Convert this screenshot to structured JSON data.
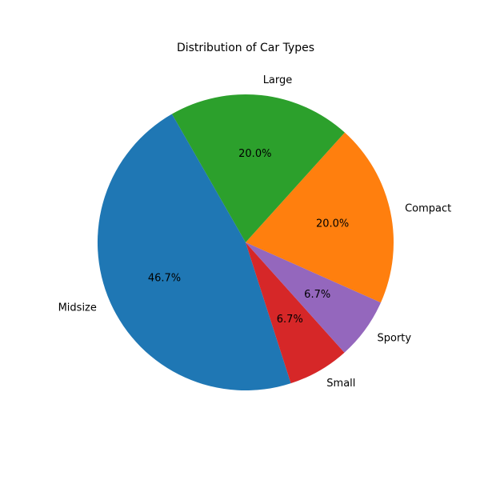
{
  "chart_data": {
    "type": "pie",
    "title": "Distribution of Car Types",
    "categories": [
      "Compact",
      "Large",
      "Midsize",
      "Small",
      "Sporty"
    ],
    "values": [
      20.0,
      20.0,
      46.7,
      6.7,
      6.7
    ],
    "value_labels": [
      "20.0%",
      "20.0%",
      "46.7%",
      "6.7%",
      "6.7%"
    ],
    "colors": [
      "#ff7f0e",
      "#2ca02c",
      "#1f77b4",
      "#d62728",
      "#9467bd"
    ],
    "start_angle_deg": -24,
    "direction": "counterclockwise",
    "legend": "none"
  }
}
